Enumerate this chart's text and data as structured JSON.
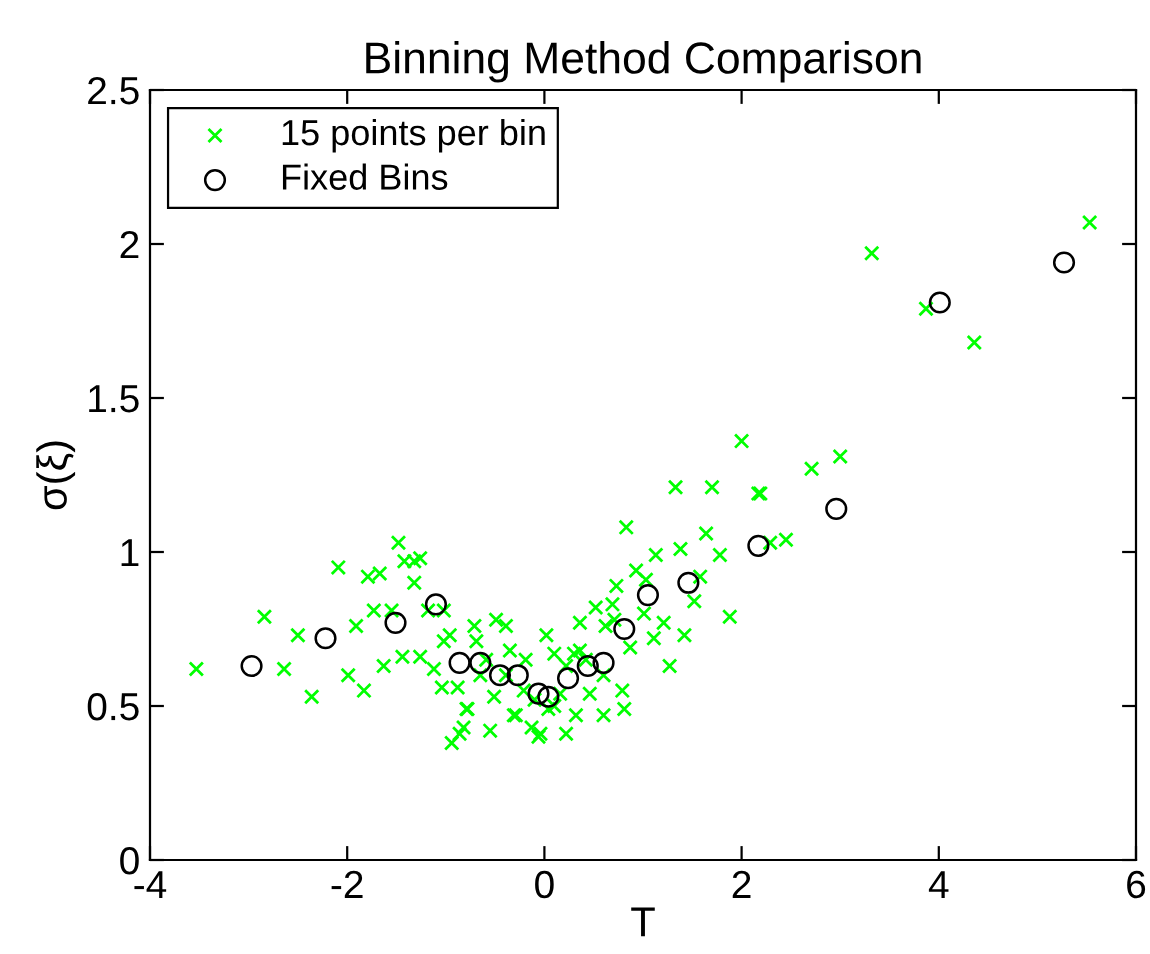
{
  "chart_data": {
    "type": "scatter",
    "title": "Binning Method Comparison",
    "xlabel": "T",
    "ylabel": "σ(ξ)",
    "xlim": [
      -4,
      6
    ],
    "xticks": [
      -4,
      -2,
      0,
      2,
      4,
      6
    ],
    "ylim": [
      0,
      2.5
    ],
    "yticks": [
      0,
      0.5,
      1,
      1.5,
      2,
      2.5
    ],
    "grid": false,
    "legend": "top left",
    "series": [
      {
        "name": "15 points per bin",
        "color": "#00ff00",
        "marker": "cross",
        "x": [
          -3.53,
          -2.84,
          -2.64,
          -2.5,
          -2.36,
          -2.09,
          -1.99,
          -1.91,
          -1.83,
          -1.79,
          -1.67,
          -1.73,
          -1.63,
          -1.55,
          -1.48,
          -1.42,
          -1.32,
          -1.26,
          -1.32,
          -1.44,
          -1.26,
          -1.18,
          -1.02,
          -1.12,
          -1.04,
          -1.02,
          -0.96,
          -0.88,
          -0.82,
          -0.94,
          -0.78,
          -0.71,
          -0.69,
          -0.86,
          -0.79,
          -0.55,
          -0.49,
          -0.39,
          -0.59,
          -0.51,
          -0.35,
          -0.31,
          -0.19,
          -0.21,
          -0.13,
          -0.06,
          0.02,
          0.1,
          0.22,
          0.36,
          0.52,
          0.62,
          0.69,
          0.73,
          0.83,
          0.93,
          1.03,
          1.01,
          1.13,
          1.21,
          1.11,
          1.42,
          1.27,
          1.38,
          1.33,
          1.7,
          1.64,
          1.78,
          1.52,
          1.58,
          1.88,
          2.17,
          2.29,
          2.45,
          0.87,
          0.79,
          0.81,
          0.6,
          0.32,
          0.46,
          0.6,
          0.22,
          -0.04,
          0.04,
          -0.1,
          0.16,
          0.3,
          0.1,
          0.42,
          -0.29,
          -0.39,
          -0.65,
          0.71,
          0.36,
          2.0,
          2.19,
          2.71,
          3.0,
          3.32,
          3.87,
          4.36,
          5.53
        ],
        "values": [
          0.62,
          0.79,
          0.62,
          0.73,
          0.53,
          0.95,
          0.6,
          0.76,
          0.55,
          0.92,
          0.93,
          0.81,
          0.63,
          0.81,
          1.03,
          0.97,
          0.97,
          0.98,
          0.9,
          0.66,
          0.66,
          0.81,
          0.81,
          0.62,
          0.56,
          0.71,
          0.73,
          0.56,
          0.43,
          0.38,
          0.49,
          0.76,
          0.71,
          0.41,
          0.49,
          0.42,
          0.78,
          0.76,
          0.65,
          0.53,
          0.68,
          0.47,
          0.65,
          0.55,
          0.43,
          0.4,
          0.73,
          0.67,
          0.63,
          0.77,
          0.82,
          0.76,
          0.83,
          0.89,
          1.08,
          0.94,
          0.91,
          0.8,
          0.99,
          0.77,
          0.72,
          0.73,
          0.63,
          1.01,
          1.21,
          1.21,
          1.06,
          0.99,
          0.84,
          0.92,
          0.79,
          1.19,
          1.03,
          1.04,
          0.69,
          0.55,
          0.49,
          0.47,
          0.47,
          0.54,
          0.6,
          0.41,
          0.41,
          0.49,
          0.52,
          0.54,
          0.67,
          0.5,
          0.65,
          0.47,
          0.6,
          0.6,
          0.78,
          0.68,
          1.36,
          1.19,
          1.27,
          1.31,
          1.97,
          1.79,
          1.68,
          2.07
        ]
      },
      {
        "name": "Fixed Bins",
        "color": "#000000",
        "marker": "circle",
        "x": [
          -2.97,
          -2.22,
          -1.51,
          -1.1,
          -0.86,
          -0.65,
          -0.45,
          -0.27,
          -0.06,
          0.04,
          0.24,
          0.44,
          0.6,
          0.81,
          1.05,
          1.46,
          2.17,
          2.96,
          4.01,
          5.27
        ],
        "values": [
          0.63,
          0.72,
          0.77,
          0.83,
          0.64,
          0.64,
          0.6,
          0.6,
          0.54,
          0.53,
          0.59,
          0.63,
          0.64,
          0.75,
          0.86,
          0.9,
          1.02,
          1.14,
          1.81,
          1.94
        ]
      }
    ]
  }
}
